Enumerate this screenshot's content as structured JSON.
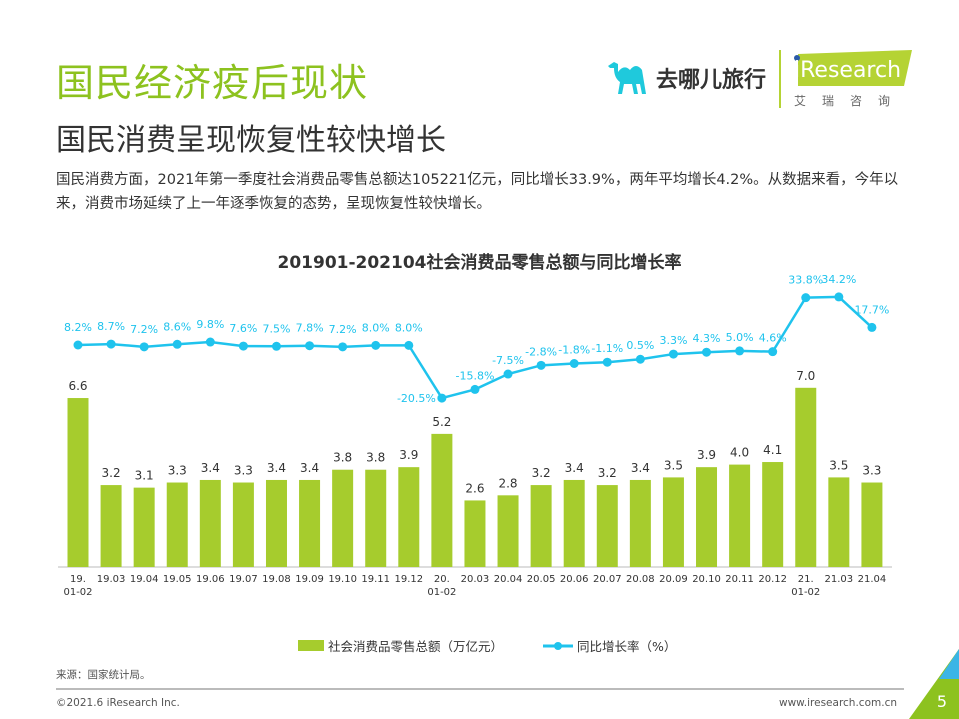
{
  "header": {
    "title": "国民经济疫后现状",
    "subtitle": "国民消费呈现恢复性较快增长"
  },
  "description": "国民消费方面，2021年第一季度社会消费品零售总额达105221亿元，同比增长33.9%，两年平均增长4.2%。从数据来看，今年以来，消费市场延续了上一年逐季恢复的态势，呈现恢复性较快增长。",
  "logos": {
    "qunar": "去哪儿旅行",
    "iresearch": "iResearch",
    "iresearch_cn": "艾瑞咨询"
  },
  "chart_data": {
    "type": "bar+line",
    "title": "201901-202104社会消费品零售总额与同比增长率",
    "categories": [
      "19.\n01-02",
      "19.03",
      "19.04",
      "19.05",
      "19.06",
      "19.07",
      "19.08",
      "19.09",
      "19.10",
      "19.11",
      "19.12",
      "20.\n01-02",
      "20.03",
      "20.04",
      "20.05",
      "20.06",
      "20.07",
      "20.08",
      "20.09",
      "20.10",
      "20.11",
      "20.12",
      "21.\n01-02",
      "21.03",
      "21.04"
    ],
    "series": [
      {
        "name": "社会消费品零售总额（万亿元）",
        "type": "bar",
        "color": "#a6cc2d",
        "values": [
          6.6,
          3.2,
          3.1,
          3.3,
          3.4,
          3.3,
          3.4,
          3.4,
          3.8,
          3.8,
          3.9,
          5.2,
          2.6,
          2.8,
          3.2,
          3.4,
          3.2,
          3.4,
          3.5,
          3.9,
          4.0,
          4.1,
          7.0,
          3.5,
          3.3
        ]
      },
      {
        "name": "同比增长率（%）",
        "type": "line",
        "color": "#1fc3ed",
        "values": [
          8.2,
          8.7,
          7.2,
          8.6,
          9.8,
          7.6,
          7.5,
          7.8,
          7.2,
          8.0,
          8.0,
          -20.5,
          -15.8,
          -7.5,
          -2.8,
          -1.8,
          -1.1,
          0.5,
          3.3,
          4.3,
          5.0,
          4.6,
          33.8,
          34.2,
          17.7
        ]
      }
    ],
    "legend": "bottom",
    "grid": false
  },
  "footer": {
    "source": "来源：国家统计局。",
    "copyright": "©2021.6 iResearch Inc.",
    "url": "www.iresearch.com.cn",
    "page": "5"
  }
}
